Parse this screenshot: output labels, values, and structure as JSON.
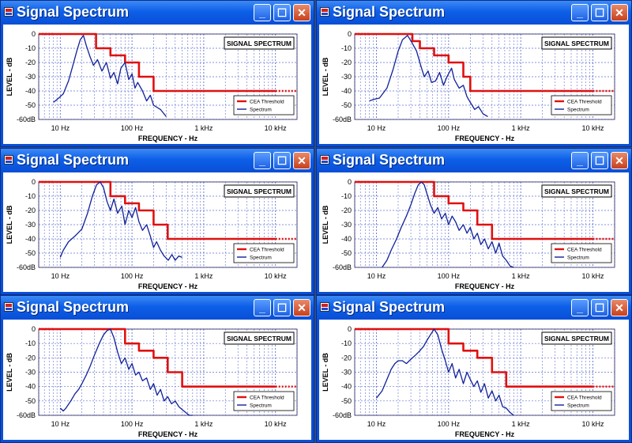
{
  "windows": [
    {
      "title": "Signal Spectrum",
      "legend_title": "SIGNAL SPECTRUM"
    },
    {
      "title": "Signal Spectrum",
      "legend_title": "SIGNAL SPECTRUM"
    },
    {
      "title": "Signal Spectrum",
      "legend_title": "SIGNAL SPECTRUM"
    },
    {
      "title": "Signal Spectrum",
      "legend_title": "SIGNAL SPECTRUM"
    },
    {
      "title": "Signal Spectrum",
      "legend_title": "SIGNAL SPECTRUM"
    },
    {
      "title": "Signal Spectrum",
      "legend_title": "SIGNAL SPECTRUM"
    }
  ],
  "buttons": {
    "minimize": "_",
    "maximize": "☐",
    "close": "✕"
  },
  "colors": {
    "threshold": "#e01010",
    "spectrum": "#10209a",
    "titlebar": "#0a4fd6",
    "grid": "#6070d0"
  },
  "chart_data": [
    {
      "type": "line",
      "xscale": "log",
      "xlim": [
        5,
        20000
      ],
      "ylim": [
        -60,
        0
      ],
      "xticks": [
        "10 Hz",
        "100 Hz",
        "1 kHz",
        "10 kHz"
      ],
      "yticks": [
        "0",
        "-10",
        "-20",
        "-30",
        "-40",
        "-50",
        "-60dB"
      ],
      "xlabel": "FREQUENCY - Hz",
      "ylabel": "LEVEL - dB",
      "series": [
        {
          "name": "CEA Threshold",
          "x": [
            5,
            20,
            31.5,
            31.5,
            50,
            50,
            80,
            80,
            125,
            125,
            200,
            200,
            10000
          ],
          "y": [
            0,
            0,
            0,
            -10,
            -10,
            -15,
            -15,
            -20,
            -20,
            -30,
            -30,
            -40,
            -40
          ]
        },
        {
          "name": "Spectrum",
          "x": [
            8,
            9,
            11,
            13,
            15,
            17,
            19,
            21,
            23,
            26,
            29,
            33,
            38,
            44,
            50,
            56,
            63,
            70,
            80,
            90,
            100,
            110,
            120,
            140,
            160,
            180,
            200,
            250,
            300
          ],
          "y": [
            -48,
            -46,
            -42,
            -33,
            -22,
            -12,
            -4,
            -1,
            -8,
            -16,
            -22,
            -18,
            -26,
            -20,
            -31,
            -27,
            -35,
            -24,
            -20,
            -32,
            -28,
            -38,
            -34,
            -40,
            -47,
            -43,
            -50,
            -53,
            -58
          ]
        }
      ]
    },
    {
      "type": "line",
      "xscale": "log",
      "xlim": [
        5,
        20000
      ],
      "ylim": [
        -60,
        0
      ],
      "xticks": [
        "10 Hz",
        "100 Hz",
        "1 kHz",
        "10 kHz"
      ],
      "yticks": [
        "0",
        "-10",
        "-20",
        "-30",
        "-40",
        "-50",
        "-60dB"
      ],
      "xlabel": "FREQUENCY - Hz",
      "ylabel": "LEVEL - dB",
      "series": [
        {
          "name": "CEA Threshold",
          "x": [
            5,
            31.5,
            31.5,
            40,
            40,
            63,
            63,
            100,
            100,
            160,
            160,
            200,
            200,
            10000
          ],
          "y": [
            0,
            0,
            -5,
            -5,
            -10,
            -10,
            -15,
            -15,
            -20,
            -20,
            -30,
            -30,
            -40,
            -40
          ]
        },
        {
          "name": "Spectrum",
          "x": [
            8,
            9,
            11,
            14,
            17,
            20,
            23,
            27,
            31,
            36,
            41,
            46,
            52,
            58,
            66,
            75,
            85,
            95,
            110,
            120,
            140,
            160,
            180,
            200,
            230,
            260,
            300,
            350
          ],
          "y": [
            -47,
            -46,
            -45,
            -38,
            -25,
            -12,
            -4,
            -1,
            -6,
            -12,
            -22,
            -30,
            -26,
            -34,
            -33,
            -27,
            -36,
            -30,
            -24,
            -32,
            -38,
            -36,
            -44,
            -48,
            -53,
            -51,
            -56,
            -58
          ]
        }
      ]
    },
    {
      "type": "line",
      "xscale": "log",
      "xlim": [
        5,
        20000
      ],
      "ylim": [
        -60,
        0
      ],
      "xticks": [
        "10 Hz",
        "100 Hz",
        "1 kHz",
        "10 kHz"
      ],
      "yticks": [
        "0",
        "-10",
        "-20",
        "-30",
        "-40",
        "-50",
        "-60dB"
      ],
      "xlabel": "FREQUENCY - Hz",
      "ylabel": "LEVEL - dB",
      "series": [
        {
          "name": "CEA Threshold",
          "x": [
            5,
            50,
            50,
            80,
            80,
            125,
            125,
            200,
            200,
            315,
            315,
            10000
          ],
          "y": [
            0,
            0,
            -10,
            -10,
            -15,
            -15,
            -20,
            -20,
            -30,
            -30,
            -40,
            -40
          ]
        },
        {
          "name": "Spectrum",
          "x": [
            10,
            11,
            13,
            16,
            20,
            24,
            28,
            32,
            36,
            40,
            45,
            50,
            56,
            63,
            72,
            80,
            90,
            100,
            112,
            125,
            140,
            160,
            180,
            200,
            220,
            250,
            280,
            320,
            360,
            400,
            450,
            500
          ],
          "y": [
            -53,
            -48,
            -42,
            -38,
            -33,
            -22,
            -10,
            -2,
            0,
            -4,
            -14,
            -20,
            -12,
            -22,
            -17,
            -30,
            -20,
            -25,
            -18,
            -28,
            -34,
            -30,
            -38,
            -46,
            -42,
            -48,
            -52,
            -55,
            -51,
            -55,
            -52,
            -53
          ]
        }
      ]
    },
    {
      "type": "line",
      "xscale": "log",
      "xlim": [
        5,
        20000
      ],
      "ylim": [
        -60,
        0
      ],
      "xticks": [
        "10 Hz",
        "100 Hz",
        "1 kHz",
        "10 kHz"
      ],
      "yticks": [
        "0",
        "-10",
        "-20",
        "-30",
        "-40",
        "-50",
        "-60dB"
      ],
      "xlabel": "FREQUENCY - Hz",
      "ylabel": "LEVEL - dB",
      "series": [
        {
          "name": "CEA Threshold",
          "x": [
            5,
            63,
            63,
            100,
            100,
            160,
            160,
            250,
            250,
            400,
            400,
            10000
          ],
          "y": [
            0,
            0,
            -10,
            -10,
            -15,
            -15,
            -20,
            -20,
            -30,
            -30,
            -40,
            -40
          ]
        },
        {
          "name": "Spectrum",
          "x": [
            12,
            14,
            16,
            19,
            22,
            26,
            30,
            34,
            38,
            42,
            46,
            50,
            56,
            63,
            71,
            80,
            90,
            100,
            112,
            125,
            140,
            160,
            180,
            200,
            224,
            250,
            280,
            315,
            355,
            400,
            450,
            500,
            560,
            630,
            710,
            800
          ],
          "y": [
            -60,
            -55,
            -48,
            -40,
            -32,
            -24,
            -16,
            -8,
            -2,
            0,
            -2,
            -8,
            -16,
            -22,
            -18,
            -26,
            -22,
            -30,
            -24,
            -28,
            -34,
            -30,
            -36,
            -32,
            -40,
            -36,
            -44,
            -40,
            -47,
            -42,
            -50,
            -43,
            -52,
            -55,
            -59,
            -60
          ]
        }
      ]
    },
    {
      "type": "line",
      "xscale": "log",
      "xlim": [
        5,
        20000
      ],
      "ylim": [
        -60,
        0
      ],
      "xticks": [
        "10 Hz",
        "100 Hz",
        "1 kHz",
        "10 kHz"
      ],
      "yticks": [
        "0",
        "-10",
        "-20",
        "-30",
        "-40",
        "-50",
        "-60dB"
      ],
      "xlabel": "FREQUENCY - Hz",
      "ylabel": "LEVEL - dB",
      "series": [
        {
          "name": "CEA Threshold",
          "x": [
            5,
            80,
            80,
            125,
            125,
            200,
            200,
            315,
            315,
            500,
            500,
            10000
          ],
          "y": [
            0,
            0,
            -10,
            -10,
            -15,
            -15,
            -20,
            -20,
            -30,
            -30,
            -40,
            -40
          ]
        },
        {
          "name": "Spectrum",
          "x": [
            10,
            11,
            12,
            14,
            16,
            18,
            20,
            23,
            26,
            30,
            35,
            40,
            45,
            50,
            56,
            63,
            71,
            80,
            90,
            100,
            112,
            125,
            140,
            160,
            180,
            200,
            224,
            250,
            280,
            315,
            355,
            400,
            450,
            500,
            560,
            630,
            700
          ],
          "y": [
            -55,
            -57,
            -55,
            -50,
            -45,
            -42,
            -38,
            -32,
            -26,
            -18,
            -10,
            -4,
            -1,
            0,
            -6,
            -16,
            -24,
            -20,
            -28,
            -24,
            -32,
            -30,
            -36,
            -34,
            -42,
            -38,
            -46,
            -42,
            -50,
            -47,
            -52,
            -50,
            -54,
            -56,
            -58,
            -60,
            -60
          ]
        }
      ]
    },
    {
      "type": "line",
      "xscale": "log",
      "xlim": [
        5,
        20000
      ],
      "ylim": [
        -60,
        0
      ],
      "xticks": [
        "10 Hz",
        "100 Hz",
        "1 kHz",
        "10 kHz"
      ],
      "yticks": [
        "0",
        "-10",
        "-20",
        "-30",
        "-40",
        "-50",
        "-60dB"
      ],
      "xlabel": "FREQUENCY - Hz",
      "ylabel": "LEVEL - dB",
      "series": [
        {
          "name": "CEA Threshold",
          "x": [
            5,
            100,
            100,
            160,
            160,
            250,
            250,
            400,
            400,
            630,
            630,
            10000
          ],
          "y": [
            0,
            0,
            -10,
            -10,
            -15,
            -15,
            -20,
            -20,
            -30,
            -30,
            -40,
            -40
          ]
        },
        {
          "name": "Spectrum",
          "x": [
            10,
            12,
            14,
            16,
            18,
            20,
            23,
            26,
            30,
            35,
            40,
            45,
            50,
            56,
            63,
            71,
            80,
            90,
            100,
            112,
            125,
            140,
            160,
            180,
            200,
            224,
            250,
            280,
            315,
            355,
            400,
            450,
            500,
            560,
            630,
            710,
            800
          ],
          "y": [
            -48,
            -43,
            -35,
            -28,
            -24,
            -22,
            -22,
            -24,
            -21,
            -18,
            -15,
            -12,
            -8,
            -4,
            0,
            -4,
            -14,
            -22,
            -30,
            -24,
            -34,
            -28,
            -38,
            -30,
            -35,
            -40,
            -36,
            -44,
            -38,
            -48,
            -43,
            -50,
            -46,
            -54,
            -55,
            -58,
            -60
          ]
        }
      ]
    }
  ]
}
